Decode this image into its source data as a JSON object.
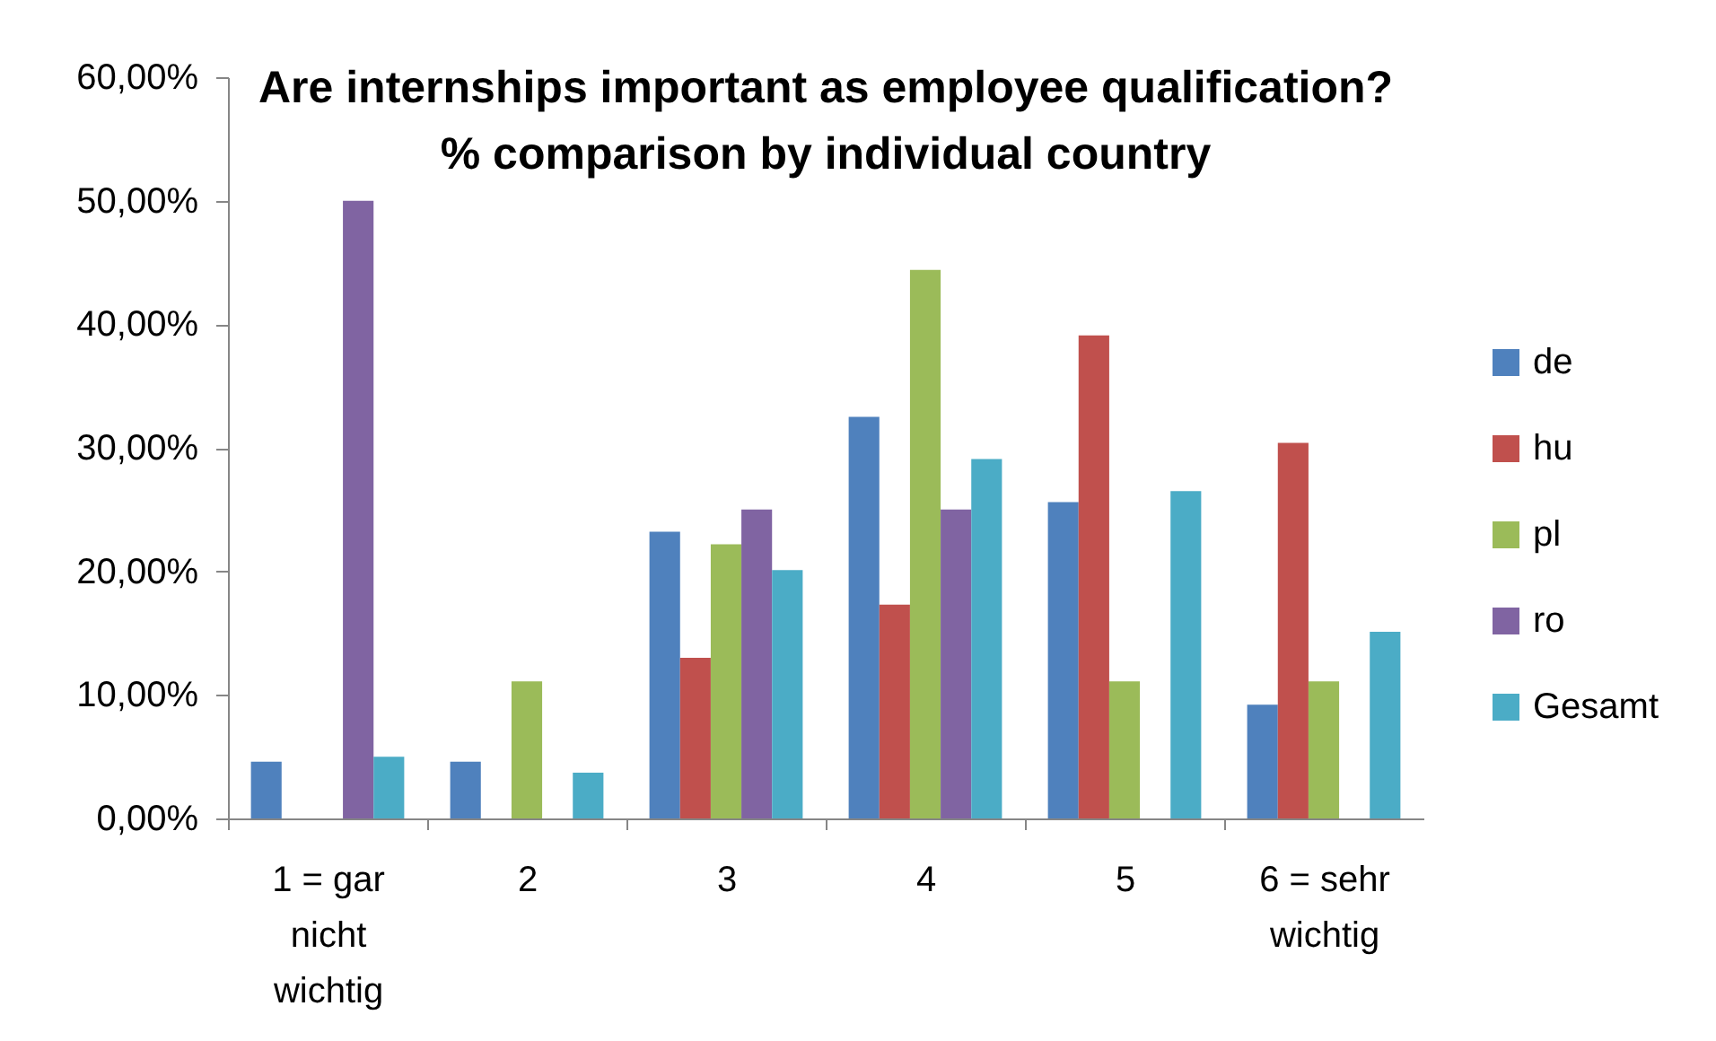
{
  "chart_data": {
    "type": "bar",
    "title": "Are internships important as employee qualification?\n% comparison by individual country",
    "categories": [
      "1 = gar nicht wichtig",
      "2",
      "3",
      "4",
      "5",
      "6 = sehr wichtig"
    ],
    "series": [
      {
        "name": "de",
        "color": "#4f81bd",
        "values": [
          4.6,
          4.6,
          23.2,
          32.5,
          25.6,
          9.2
        ]
      },
      {
        "name": "hu",
        "color": "#c0504d",
        "values": [
          null,
          null,
          13.0,
          17.3,
          39.1,
          30.4
        ]
      },
      {
        "name": "pl",
        "color": "#9bbb59",
        "values": [
          null,
          11.1,
          22.2,
          44.4,
          11.1,
          11.1
        ]
      },
      {
        "name": "ro",
        "color": "#8064a2",
        "values": [
          50.0,
          null,
          25.0,
          25.0,
          null,
          null
        ]
      },
      {
        "name": "Gesamt",
        "color": "#4bacc6",
        "values": [
          5.0,
          3.7,
          20.1,
          29.1,
          26.5,
          15.1
        ]
      }
    ],
    "ylim": [
      0,
      60
    ],
    "yticks": [
      {
        "value": 0,
        "label": "0,00%"
      },
      {
        "value": 10,
        "label": "10,00%"
      },
      {
        "value": 20,
        "label": "20,00%"
      },
      {
        "value": 30,
        "label": "30,00%"
      },
      {
        "value": 40,
        "label": "40,00%"
      },
      {
        "value": 50,
        "label": "50,00%"
      },
      {
        "value": 60,
        "label": "60,00%"
      }
    ],
    "grid": false,
    "legend": "right"
  }
}
